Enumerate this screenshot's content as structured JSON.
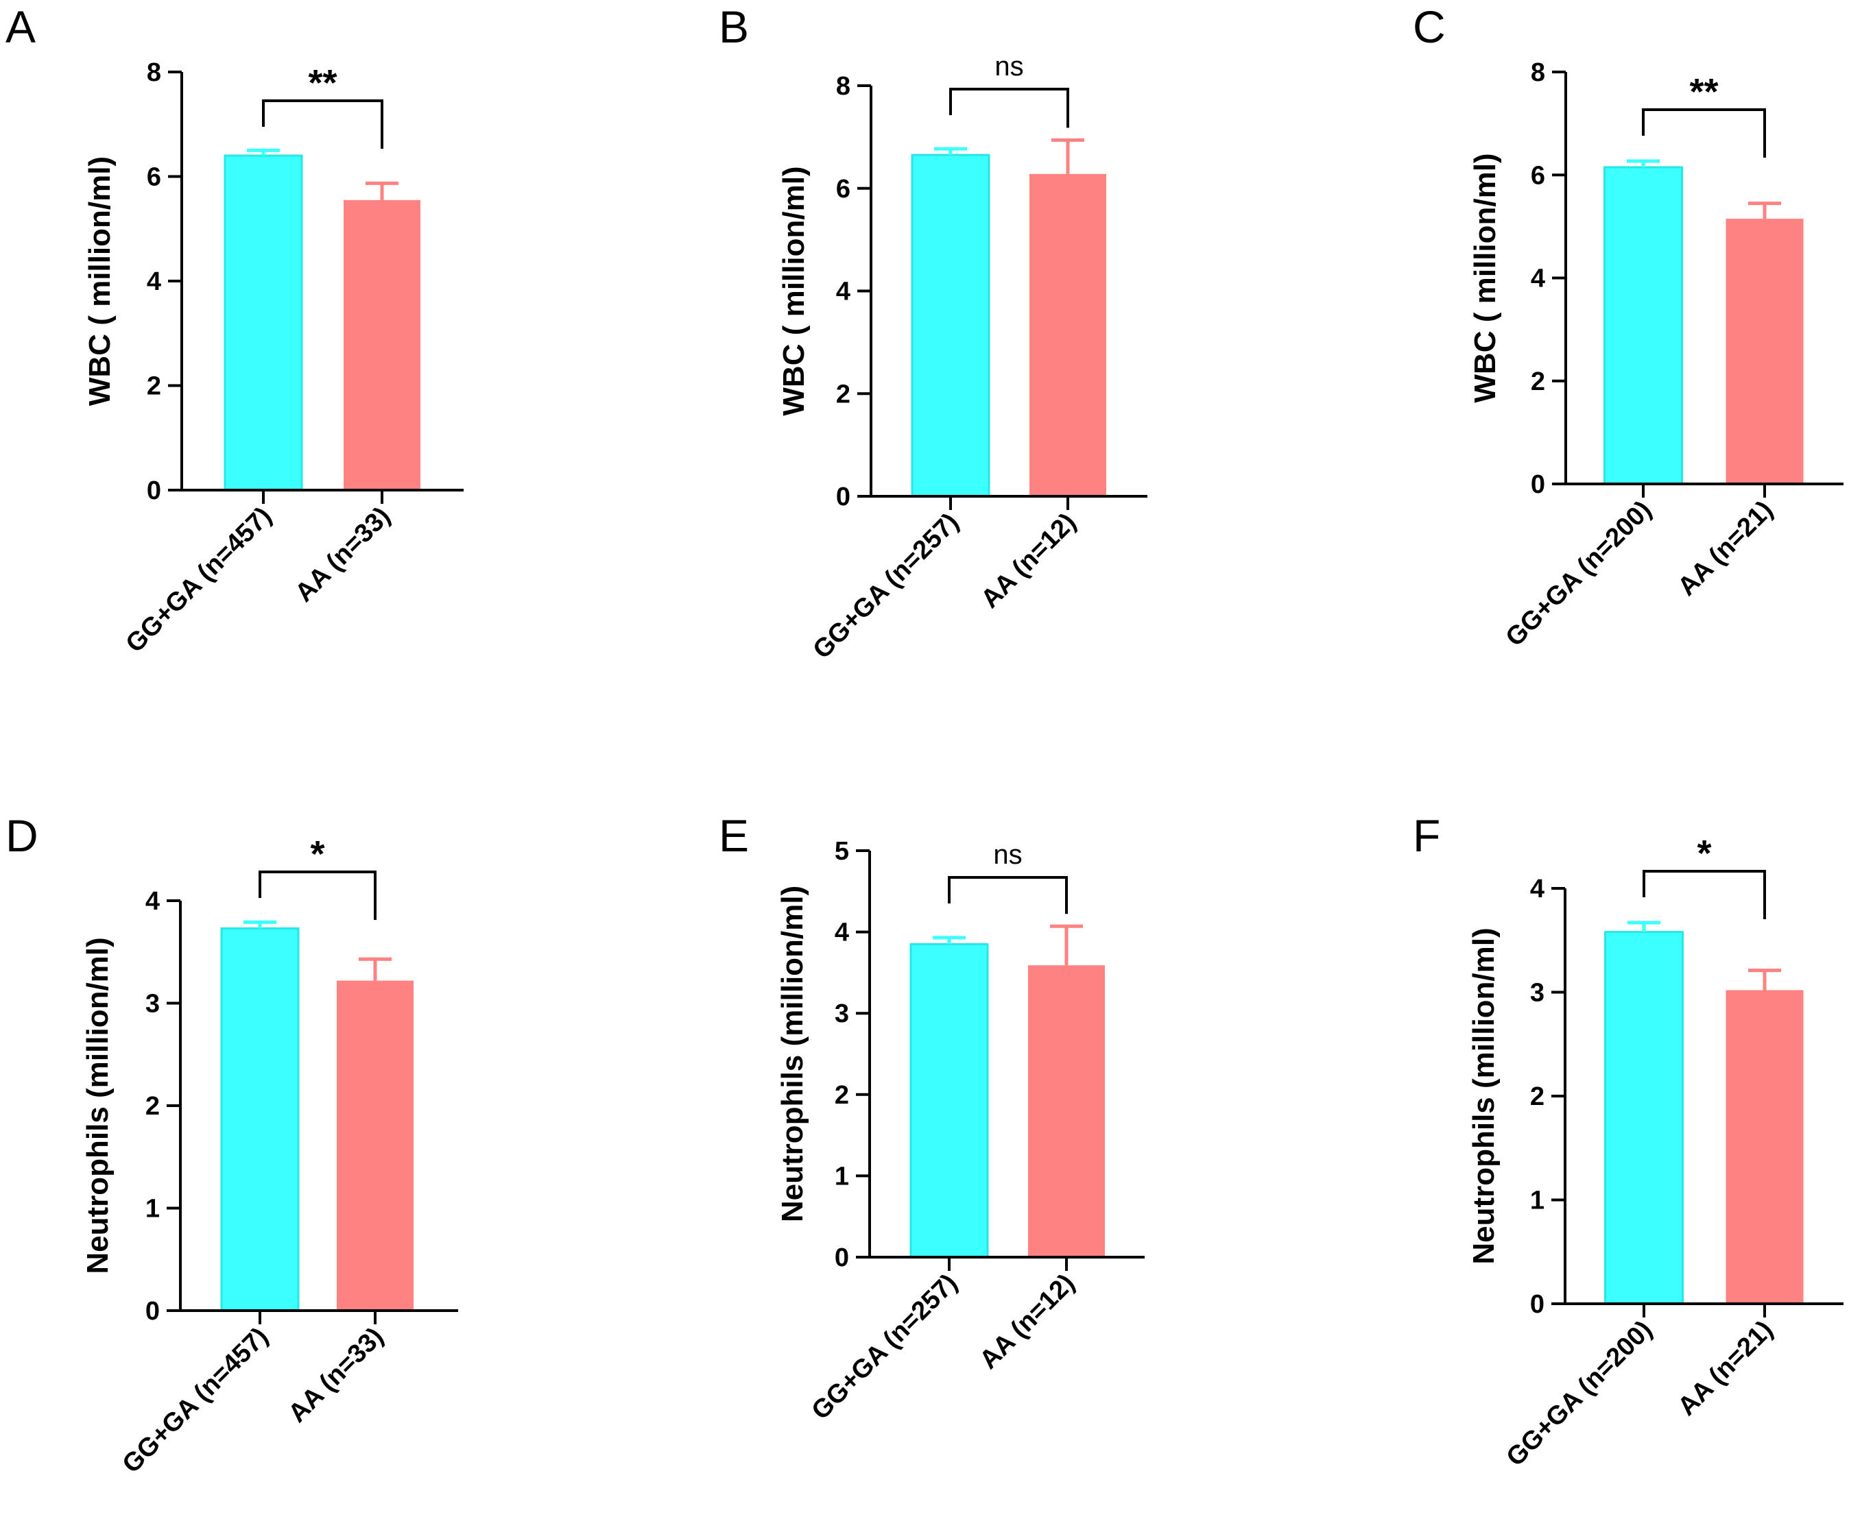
{
  "figure_title": "",
  "colors": {
    "group1": "#3cffff",
    "group1_edge": "#27e6e6",
    "group2": "#ff8282",
    "axis": "#000000"
  },
  "chart_data": [
    {
      "panel": "A",
      "type": "bar",
      "title": "",
      "ylabel": "WBC ( million/ml)",
      "xlabel": "",
      "ylim": [
        0,
        8
      ],
      "yticks": [
        0,
        2,
        4,
        6,
        8
      ],
      "categories": [
        "GG+GA (n=457)",
        "AA (n=33)"
      ],
      "values": [
        6.4,
        5.55
      ],
      "errors": [
        0.1,
        0.32
      ],
      "significance": "**"
    },
    {
      "panel": "B",
      "type": "bar",
      "title": "",
      "ylabel": "WBC ( million/ml)",
      "xlabel": "",
      "ylim": [
        0,
        8
      ],
      "yticks": [
        0,
        2,
        4,
        6,
        8
      ],
      "categories": [
        "GG+GA (n=257)",
        "AA (n=12)"
      ],
      "values": [
        6.65,
        6.28
      ],
      "errors": [
        0.12,
        0.66
      ],
      "significance": "ns"
    },
    {
      "panel": "C",
      "type": "bar",
      "title": "",
      "ylabel": "WBC ( million/ml)",
      "xlabel": "",
      "ylim": [
        0,
        8
      ],
      "yticks": [
        0,
        2,
        4,
        6,
        8
      ],
      "categories": [
        "GG+GA (n=200)",
        "AA (n=21)"
      ],
      "values": [
        6.15,
        5.15
      ],
      "errors": [
        0.12,
        0.3
      ],
      "significance": "**"
    },
    {
      "panel": "D",
      "type": "bar",
      "title": "",
      "ylabel": "Neutrophils (million/ml)",
      "xlabel": "",
      "ylim": [
        0,
        4
      ],
      "yticks": [
        0,
        1,
        2,
        3,
        4
      ],
      "categories": [
        "GG+GA (n=457)",
        "AA (n=33)"
      ],
      "values": [
        3.73,
        3.22
      ],
      "errors": [
        0.06,
        0.21
      ],
      "significance": "*"
    },
    {
      "panel": "E",
      "type": "bar",
      "title": "",
      "ylabel": "Neutrophils (million/ml)",
      "xlabel": "",
      "ylim": [
        0,
        5
      ],
      "yticks": [
        0,
        1,
        2,
        3,
        4,
        5
      ],
      "categories": [
        "GG+GA (n=257)",
        "AA (n=12)"
      ],
      "values": [
        3.85,
        3.59
      ],
      "errors": [
        0.08,
        0.48
      ],
      "significance": "ns"
    },
    {
      "panel": "F",
      "type": "bar",
      "title": "",
      "ylabel": "Neutrophils (million/ml)",
      "xlabel": "",
      "ylim": [
        0,
        4
      ],
      "yticks": [
        0,
        1,
        2,
        3,
        4
      ],
      "categories": [
        "GG+GA (n=200)",
        "AA (n=21)"
      ],
      "values": [
        3.58,
        3.02
      ],
      "errors": [
        0.09,
        0.19
      ],
      "significance": "*"
    }
  ]
}
